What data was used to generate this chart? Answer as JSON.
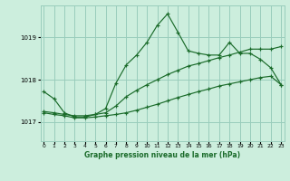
{
  "title": "Graphe pression niveau de la mer (hPa)",
  "bg_color": "#cceedd",
  "grid_color": "#99ccbb",
  "line_color": "#1a6b2a",
  "x_ticks": [
    0,
    1,
    2,
    3,
    4,
    5,
    6,
    7,
    8,
    9,
    10,
    11,
    12,
    13,
    14,
    15,
    16,
    17,
    18,
    19,
    20,
    21,
    22,
    23
  ],
  "y_ticks": [
    1017,
    1018,
    1019
  ],
  "ylim": [
    1016.55,
    1019.75
  ],
  "xlim": [
    -0.3,
    23.3
  ],
  "series1": [
    1017.72,
    1017.55,
    1017.22,
    1017.12,
    1017.12,
    1017.18,
    1017.32,
    1017.92,
    1018.35,
    1018.58,
    1018.88,
    1019.28,
    1019.55,
    1019.12,
    1018.68,
    1018.62,
    1018.58,
    1018.58,
    1018.88,
    1018.62,
    1018.62,
    1018.48,
    1018.28,
    1017.88
  ],
  "series2": [
    1017.25,
    1017.22,
    1017.18,
    1017.15,
    1017.15,
    1017.18,
    1017.22,
    1017.38,
    1017.6,
    1017.75,
    1017.88,
    1018.0,
    1018.12,
    1018.22,
    1018.32,
    1018.38,
    1018.45,
    1018.52,
    1018.58,
    1018.65,
    1018.72,
    1018.72,
    1018.72,
    1018.78
  ],
  "series3": [
    1017.22,
    1017.18,
    1017.15,
    1017.1,
    1017.1,
    1017.12,
    1017.15,
    1017.18,
    1017.22,
    1017.28,
    1017.35,
    1017.42,
    1017.5,
    1017.58,
    1017.65,
    1017.72,
    1017.78,
    1017.85,
    1017.9,
    1017.95,
    1018.0,
    1018.05,
    1018.08,
    1017.88
  ]
}
